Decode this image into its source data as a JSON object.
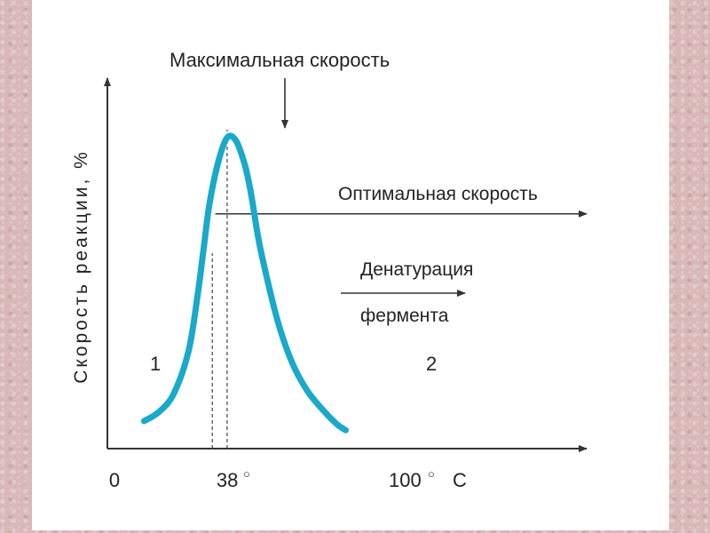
{
  "chart_data": {
    "type": "line",
    "title": "",
    "ylabel": "Скорость реакции, %",
    "xlabel": "",
    "x_ticks": [
      {
        "value": 0,
        "label": "0"
      },
      {
        "value": 38,
        "label": "38",
        "degree": "○"
      },
      {
        "value": 100,
        "label": "100",
        "degree": "○",
        "unit": "С"
      }
    ],
    "xlim": [
      0,
      120
    ],
    "ylim": [
      0,
      100
    ],
    "grid": false,
    "series": [
      {
        "color": "#1aa9c9",
        "x": [
          10,
          15,
          20,
          25,
          28,
          30,
          32,
          35,
          38,
          41,
          44,
          46,
          48,
          50,
          55,
          60,
          65,
          70,
          75,
          78
        ],
        "y": [
          7,
          10,
          16,
          30,
          48,
          63,
          78,
          92,
          100,
          99,
          91,
          82,
          70,
          60,
          40,
          26,
          17,
          11,
          6,
          4
        ]
      }
    ],
    "reference_lines": {
      "optimal_speed": 75,
      "dashed_x": [
        33,
        38
      ]
    },
    "annotations": {
      "max_speed": "Максимальная скорость",
      "optimal_speed": "Оптимальная скорость",
      "denaturation_line1": "Денатурация",
      "denaturation_line2": "фермента",
      "region_1": "1",
      "region_2": "2"
    }
  }
}
